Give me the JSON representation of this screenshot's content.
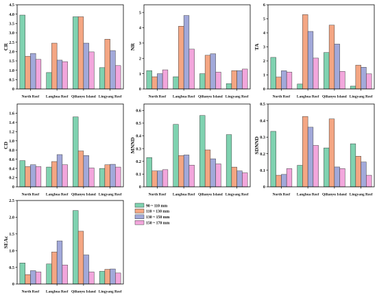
{
  "chart_data": [
    {
      "type": "bar",
      "ylabel": "CR",
      "categories": [
        "North Reef",
        "Langhua Reef",
        "Qilianyu Island",
        "Lingyang Reef"
      ],
      "ylim": [
        0,
        4.5
      ],
      "yticks": [
        "0",
        "0.5",
        "1.0",
        "1.5",
        "2.0",
        "2.5",
        "3.0",
        "3.5",
        "4.0",
        "4.5"
      ],
      "grid": false,
      "series": [
        {
          "name": "90 ~ 110 mm",
          "color": "#7fd2b0",
          "values": [
            3.95,
            0.88,
            3.86,
            1.14
          ]
        },
        {
          "name": "110 ~ 130 mm",
          "color": "#f4a683",
          "values": [
            1.75,
            2.45,
            3.86,
            2.66
          ]
        },
        {
          "name": "130 ~ 150 mm",
          "color": "#a2a9da",
          "values": [
            1.9,
            1.54,
            2.45,
            2.05
          ]
        },
        {
          "name": "150 ~ 170 mm",
          "color": "#f2a6dc",
          "values": [
            1.58,
            1.46,
            1.98,
            1.25
          ]
        }
      ]
    },
    {
      "type": "bar",
      "ylabel": "NR",
      "categories": [
        "North Reef",
        "Langhua Reef",
        "Qilianyu Island",
        "Lingyang Reef"
      ],
      "ylim": [
        0,
        5.5
      ],
      "yticks": [
        "0",
        "1",
        "2",
        "3",
        "4",
        "5"
      ],
      "grid": false,
      "series": [
        {
          "name": "90 ~ 110 mm",
          "color": "#7fd2b0",
          "values": [
            1.2,
            0.8,
            1.0,
            0.35
          ]
        },
        {
          "name": "110 ~ 130 mm",
          "color": "#f4a683",
          "values": [
            0.8,
            4.1,
            2.2,
            1.2
          ]
        },
        {
          "name": "130 ~ 150 mm",
          "color": "#a2a9da",
          "values": [
            1.0,
            4.8,
            2.3,
            1.2
          ]
        },
        {
          "name": "150 ~ 170 mm",
          "color": "#f2a6dc",
          "values": [
            1.25,
            2.6,
            1.1,
            1.3
          ]
        }
      ]
    },
    {
      "type": "bar",
      "ylabel": "TA",
      "categories": [
        "North Reef",
        "Langhua Reef",
        "Qilianyu Island",
        "Lingyang Reef"
      ],
      "ylim": [
        0,
        6
      ],
      "yticks": [
        "0",
        "1",
        "2",
        "3",
        "4",
        "5",
        "6"
      ],
      "grid": false,
      "series": [
        {
          "name": "90 ~ 110 mm",
          "color": "#7fd2b0",
          "values": [
            2.25,
            0.35,
            2.6,
            0.2
          ]
        },
        {
          "name": "110 ~ 130 mm",
          "color": "#f4a683",
          "values": [
            0.85,
            5.3,
            4.55,
            1.7
          ]
        },
        {
          "name": "130 ~ 150 mm",
          "color": "#a2a9da",
          "values": [
            1.3,
            4.1,
            3.2,
            1.55
          ]
        },
        {
          "name": "150 ~ 170 mm",
          "color": "#f2a6dc",
          "values": [
            1.2,
            2.2,
            1.25,
            1.08
          ]
        }
      ]
    },
    {
      "type": "bar",
      "ylabel": "CD",
      "categories": [
        "North Reef",
        "Langhua Reef",
        "Qilianyu Island",
        "Lingyang Reef"
      ],
      "ylim": [
        0,
        1.8
      ],
      "yticks": [
        "0",
        "0.2",
        "0.4",
        "0.6",
        "0.8",
        "1.0",
        "1.2",
        "1.4",
        "1.6"
      ],
      "grid": false,
      "series": [
        {
          "name": "90 ~ 110 mm",
          "color": "#7fd2b0",
          "values": [
            0.57,
            0.43,
            1.52,
            0.4
          ]
        },
        {
          "name": "110 ~ 130 mm",
          "color": "#f4a683",
          "values": [
            0.44,
            0.55,
            0.78,
            0.48
          ]
        },
        {
          "name": "130 ~ 150 mm",
          "color": "#a2a9da",
          "values": [
            0.48,
            0.7,
            0.68,
            0.49
          ]
        },
        {
          "name": "150 ~ 170 mm",
          "color": "#f2a6dc",
          "values": [
            0.44,
            0.48,
            0.41,
            0.43
          ]
        }
      ]
    },
    {
      "type": "bar",
      "ylabel": "MNND",
      "categories": [
        "North Reef",
        "Langhua Reef",
        "Qilianyu Island",
        "Lingyang Reef"
      ],
      "ylim": [
        0,
        0.65
      ],
      "yticks": [
        "0",
        "0.1",
        "0.2",
        "0.3",
        "0.4",
        "0.5",
        "0.6"
      ],
      "grid": false,
      "series": [
        {
          "name": "90 ~ 110 mm",
          "color": "#7fd2b0",
          "values": [
            0.23,
            0.49,
            0.56,
            0.41
          ]
        },
        {
          "name": "110 ~ 130 mm",
          "color": "#f4a683",
          "values": [
            0.125,
            0.245,
            0.29,
            0.155
          ]
        },
        {
          "name": "130 ~ 150 mm",
          "color": "#a2a9da",
          "values": [
            0.125,
            0.25,
            0.22,
            0.125
          ]
        },
        {
          "name": "150 ~ 170 mm",
          "color": "#f2a6dc",
          "values": [
            0.135,
            0.17,
            0.18,
            0.11
          ]
        }
      ]
    },
    {
      "type": "bar",
      "ylabel": "SDNND",
      "categories": [
        "North Reef",
        "Langhua Reef",
        "Qilianyu Island",
        "Lingyang Reef"
      ],
      "ylim": [
        0,
        0.5
      ],
      "yticks": [
        "0",
        "0.1",
        "0.2",
        "0.3",
        "0.4",
        "0.5"
      ],
      "grid": false,
      "series": [
        {
          "name": "90 ~ 110 mm",
          "color": "#7fd2b0",
          "values": [
            0.335,
            0.13,
            0.235,
            0.26
          ]
        },
        {
          "name": "110 ~ 130 mm",
          "color": "#f4a683",
          "values": [
            0.07,
            0.425,
            0.41,
            0.185
          ]
        },
        {
          "name": "130 ~ 150 mm",
          "color": "#a2a9da",
          "values": [
            0.075,
            0.36,
            0.12,
            0.15
          ]
        },
        {
          "name": "150 ~ 170 mm",
          "color": "#f2a6dc",
          "values": [
            0.11,
            0.25,
            0.11,
            0.07
          ]
        }
      ]
    },
    {
      "type": "bar",
      "ylabel": "SEAc",
      "categories": [
        "North Reef",
        "Langhua Reef",
        "Qilianyu Island",
        "Lingyang Reef"
      ],
      "ylim": [
        0,
        2.5
      ],
      "yticks": [
        "0",
        "0.5",
        "1.0",
        "1.5",
        "2.0",
        "2.5"
      ],
      "grid": false,
      "series": [
        {
          "name": "90 ~ 110 mm",
          "color": "#7fd2b0",
          "values": [
            0.63,
            0.6,
            2.2,
            0.38
          ]
        },
        {
          "name": "110 ~ 130 mm",
          "color": "#f4a683",
          "values": [
            0.28,
            0.96,
            1.58,
            0.44
          ]
        },
        {
          "name": "130 ~ 150 mm",
          "color": "#a2a9da",
          "values": [
            0.4,
            1.29,
            0.87,
            0.45
          ]
        },
        {
          "name": "150 ~ 170 mm",
          "color": "#f2a6dc",
          "values": [
            0.36,
            0.57,
            0.36,
            0.33
          ]
        }
      ]
    }
  ]
}
